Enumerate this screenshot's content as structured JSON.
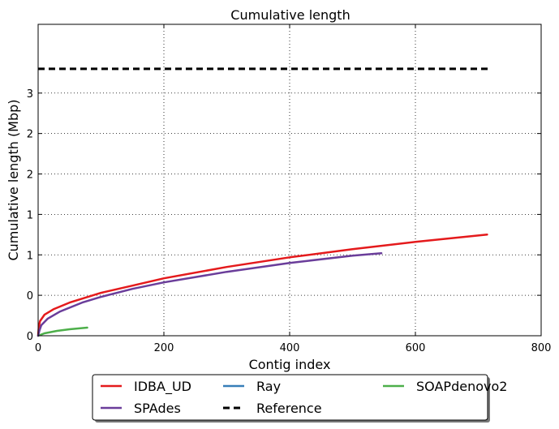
{
  "chart_data": {
    "type": "line",
    "title": "Cumulative length",
    "xlabel": "Contig index",
    "ylabel": "Cumulative length (Mbp)",
    "xlim": [
      0,
      800
    ],
    "ylim": [
      0,
      3.85
    ],
    "x_ticks": [
      0,
      200,
      400,
      600,
      800
    ],
    "x_tick_labels": [
      "0",
      "200",
      "400",
      "600",
      "800"
    ],
    "y_ticks": [
      0,
      0.5,
      1.0,
      1.5,
      2.0,
      2.5,
      3.0
    ],
    "y_tick_labels": [
      "0",
      "0",
      "1",
      "1",
      "2",
      "2",
      "3"
    ],
    "grid": true,
    "legend_position": "below plot",
    "series": [
      {
        "name": "IDBA_UD",
        "color": "#e41a1c",
        "style": "solid",
        "points": [
          [
            0,
            0
          ],
          [
            1,
            0.1
          ],
          [
            3,
            0.18
          ],
          [
            10,
            0.26
          ],
          [
            25,
            0.33
          ],
          [
            50,
            0.41
          ],
          [
            100,
            0.53
          ],
          [
            150,
            0.62
          ],
          [
            200,
            0.71
          ],
          [
            300,
            0.85
          ],
          [
            400,
            0.97
          ],
          [
            500,
            1.07
          ],
          [
            600,
            1.16
          ],
          [
            714,
            1.25
          ]
        ]
      },
      {
        "name": "Ray",
        "color": "#377eb8",
        "style": "solid",
        "points": []
      },
      {
        "name": "SOAPdenovo2",
        "color": "#4daf4a",
        "style": "solid",
        "points": [
          [
            0,
            0
          ],
          [
            10,
            0.03
          ],
          [
            30,
            0.06
          ],
          [
            50,
            0.08
          ],
          [
            78,
            0.1
          ]
        ]
      },
      {
        "name": "SPAdes",
        "color": "#6a3d9a",
        "style": "solid",
        "points": [
          [
            0,
            0
          ],
          [
            2,
            0.06
          ],
          [
            5,
            0.13
          ],
          [
            15,
            0.21
          ],
          [
            35,
            0.3
          ],
          [
            70,
            0.41
          ],
          [
            100,
            0.48
          ],
          [
            150,
            0.58
          ],
          [
            200,
            0.66
          ],
          [
            300,
            0.79
          ],
          [
            400,
            0.9
          ],
          [
            500,
            0.99
          ],
          [
            546,
            1.02
          ]
        ]
      },
      {
        "name": "Reference",
        "color": "#000000",
        "style": "dashed",
        "points": [
          [
            0,
            3.3
          ],
          [
            715,
            3.3
          ]
        ]
      }
    ]
  }
}
